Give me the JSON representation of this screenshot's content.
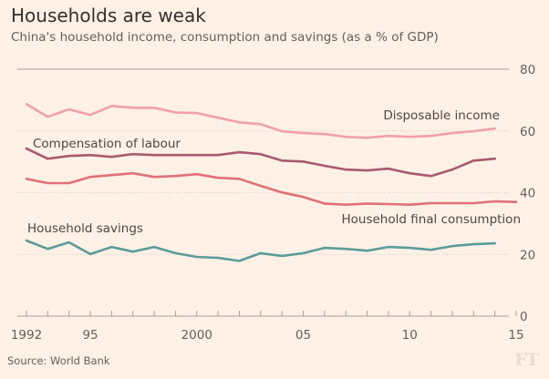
{
  "header": {
    "title": "Households are weak",
    "subtitle": "China's household income, consumption and savings (as a % of GDP)"
  },
  "footer": {
    "source": "Source: World Bank",
    "logo": "FT"
  },
  "chart_data": {
    "type": "line",
    "title": "Households are weak",
    "subtitle": "China's household income, consumption and savings (as a % of GDP)",
    "xlabel": "",
    "ylabel": "% of GDP",
    "xlim": [
      1992,
      2015
    ],
    "ylim": [
      0,
      80
    ],
    "x_ticks": [
      1992,
      1995,
      2000,
      2005,
      2010,
      2015
    ],
    "x_tick_labels": [
      "1992",
      "95",
      "2000",
      "05",
      "10",
      "15"
    ],
    "y_ticks": [
      0,
      20,
      40,
      60,
      80
    ],
    "y_tick_labels": [
      "0",
      "20",
      "40",
      "60",
      "80"
    ],
    "grid": "dotted horizontal",
    "x": [
      1992,
      1993,
      1994,
      1995,
      1996,
      1997,
      1998,
      1999,
      2000,
      2001,
      2002,
      2003,
      2004,
      2005,
      2006,
      2007,
      2008,
      2009,
      2010,
      2011,
      2012,
      2013,
      2014,
      2015
    ],
    "series": [
      {
        "name": "Disposable income",
        "color": "#f2a0a8",
        "values": [
          68.7,
          64.6,
          67.0,
          65.2,
          68.1,
          67.5,
          67.5,
          66.0,
          65.8,
          64.3,
          62.8,
          62.2,
          59.9,
          59.3,
          59.0,
          58.1,
          57.8,
          58.4,
          58.1,
          58.4,
          59.3,
          59.9,
          60.8,
          null
        ]
      },
      {
        "name": "Compensation of labour",
        "color": "#a95a6e",
        "values": [
          54.3,
          51.0,
          51.9,
          52.2,
          51.6,
          52.5,
          52.2,
          52.2,
          52.2,
          52.2,
          53.1,
          52.5,
          50.4,
          50.1,
          48.7,
          47.5,
          47.2,
          47.8,
          46.3,
          45.4,
          47.5,
          50.4,
          51.0,
          null
        ]
      },
      {
        "name": "Household final consumption",
        "color": "#e0707a",
        "values": [
          44.5,
          43.1,
          43.1,
          45.1,
          45.7,
          46.3,
          45.1,
          45.4,
          46.0,
          44.8,
          44.5,
          42.2,
          40.1,
          38.6,
          36.5,
          36.1,
          36.5,
          36.3,
          36.1,
          36.6,
          36.6,
          36.6,
          37.2,
          37.0
        ]
      },
      {
        "name": "Household savings",
        "color": "#5c9b9b",
        "values": [
          24.5,
          21.8,
          23.9,
          20.1,
          22.4,
          20.9,
          22.4,
          20.4,
          19.2,
          18.9,
          17.9,
          20.4,
          19.5,
          20.4,
          22.1,
          21.8,
          21.2,
          22.4,
          22.1,
          21.5,
          22.7,
          23.3,
          23.6,
          null
        ]
      }
    ],
    "annotations": [
      {
        "text": "Disposable income",
        "series": "Disposable income"
      },
      {
        "text": "Compensation of labour",
        "series": "Compensation of labour"
      },
      {
        "text": "Household final consumption",
        "series": "Household final consumption"
      },
      {
        "text": "Household savings",
        "series": "Household savings"
      }
    ]
  }
}
